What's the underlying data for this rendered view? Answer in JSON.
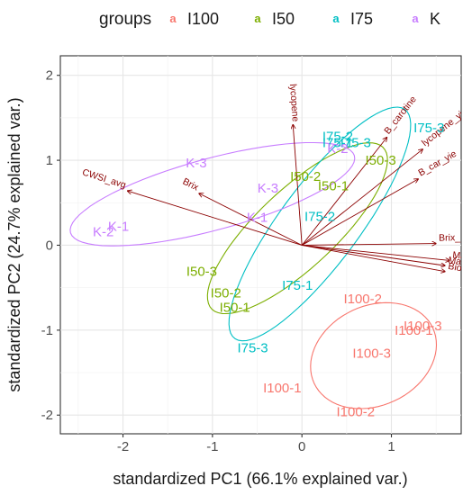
{
  "chart_data": {
    "type": "scatter",
    "title": "",
    "xlabel": "standardized PC1 (66.1% explained var.)",
    "ylabel": "standardized PC2 (24.7% explained var.)",
    "xlim": [
      -2.7,
      1.78
    ],
    "ylim": [
      -2.22,
      2.23
    ],
    "x_ticks": [
      -2,
      -1,
      0,
      1
    ],
    "y_ticks": [
      -2,
      -1,
      0,
      1,
      2
    ],
    "grid": true,
    "legend": {
      "title": "groups",
      "position": "top",
      "glyph": "a",
      "entries": [
        "I100",
        "I50",
        "I75",
        "K"
      ]
    },
    "colors": {
      "I100": "#F8766D",
      "I50": "#7CAE00",
      "I75": "#00BFC4",
      "K": "#C77CFF",
      "vectors": "#8B0000"
    },
    "series": [
      {
        "name": "I100",
        "points": [
          {
            "label": "I100-2",
            "x": 0.68,
            "y": -0.63
          },
          {
            "label": "I100-3",
            "x": 1.35,
            "y": -0.95
          },
          {
            "label": "I100-1",
            "x": 1.25,
            "y": -1.0
          },
          {
            "label": "I100-3",
            "x": 0.78,
            "y": -1.27
          },
          {
            "label": "I100-1",
            "x": -0.22,
            "y": -1.68
          },
          {
            "label": "I100-2",
            "x": 0.6,
            "y": -1.96
          }
        ],
        "ellipse": {
          "cx": 0.8,
          "cy": -1.3,
          "rx": 0.74,
          "ry": 0.58,
          "angle_deg": 30
        }
      },
      {
        "name": "I50",
        "points": [
          {
            "label": "I50-2",
            "x": 0.04,
            "y": 0.81
          },
          {
            "label": "I50-1",
            "x": 0.35,
            "y": 0.7
          },
          {
            "label": "I50-3",
            "x": 0.88,
            "y": 1.0
          },
          {
            "label": "I50-3",
            "x": -1.12,
            "y": -0.31
          },
          {
            "label": "I50-2",
            "x": -0.85,
            "y": -0.56
          },
          {
            "label": "I50-1",
            "x": -0.75,
            "y": -0.73
          }
        ],
        "ellipse": {
          "cx": -0.05,
          "cy": 0.2,
          "rx": 1.35,
          "ry": 0.45,
          "angle_deg": 45
        }
      },
      {
        "name": "I75",
        "points": [
          {
            "label": "I75-2",
            "x": 0.4,
            "y": 1.28
          },
          {
            "label": "I75-3",
            "x": 0.6,
            "y": 1.21
          },
          {
            "label": "I75-1",
            "x": 0.4,
            "y": 1.21
          },
          {
            "label": "I75-3",
            "x": 1.42,
            "y": 1.38
          },
          {
            "label": "I75-2",
            "x": 0.2,
            "y": 0.34
          },
          {
            "label": "I75-1",
            "x": -0.05,
            "y": -0.47
          },
          {
            "label": "I75-3",
            "x": -0.55,
            "y": -1.21
          }
        ],
        "ellipse": {
          "cx": 0.2,
          "cy": 0.25,
          "rx": 1.65,
          "ry": 0.45,
          "angle_deg": 55
        }
      },
      {
        "name": "K",
        "points": [
          {
            "label": "K-3",
            "x": -1.18,
            "y": 0.97
          },
          {
            "label": "K-2",
            "x": 0.4,
            "y": 1.14
          },
          {
            "label": "K-3",
            "x": -0.38,
            "y": 0.67
          },
          {
            "label": "K-1",
            "x": -0.5,
            "y": 0.33
          },
          {
            "label": "K-1",
            "x": -2.05,
            "y": 0.22
          },
          {
            "label": "K-2",
            "x": -2.22,
            "y": 0.16
          }
        ],
        "ellipse": {
          "cx": -1.0,
          "cy": 0.6,
          "rx": 1.65,
          "ry": 0.42,
          "angle_deg": 16
        }
      }
    ],
    "variables": [
      {
        "label": "lycopene",
        "x": -0.1,
        "y": 1.42
      },
      {
        "label": "B_carotine",
        "x": 0.95,
        "y": 1.27
      },
      {
        "label": "lycopene_yie",
        "x": 1.35,
        "y": 1.13
      },
      {
        "label": "B_car_yie",
        "x": 1.3,
        "y": 0.78
      },
      {
        "label": "CWSI_avg",
        "x": -1.95,
        "y": 0.64
      },
      {
        "label": "Brix",
        "x": -1.15,
        "y": 0.61
      },
      {
        "label": "Brix_",
        "x": 1.5,
        "y": 0.02
      },
      {
        "label": "Mat",
        "x": 1.65,
        "y": -0.18
      },
      {
        "label": "Ma",
        "x": 1.6,
        "y": -0.24
      },
      {
        "label": "Bioma",
        "x": 1.6,
        "y": -0.31
      }
    ]
  }
}
